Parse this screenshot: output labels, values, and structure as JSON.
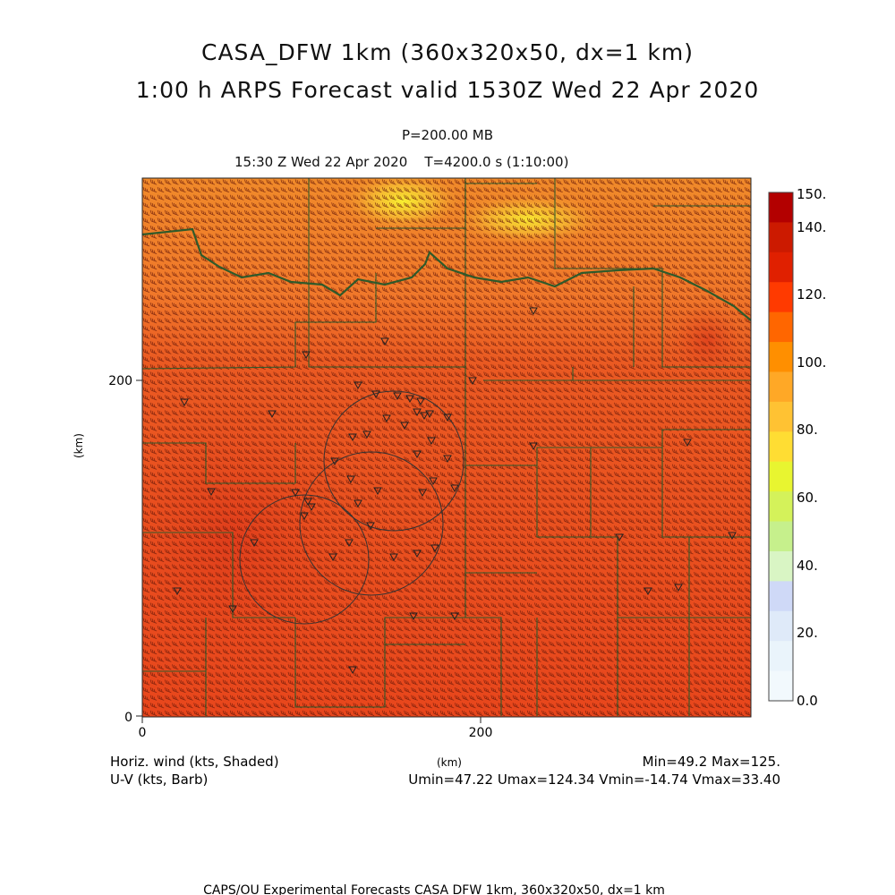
{
  "title_line1": "CASA_DFW 1km (360x320x50, dx=1 km)",
  "title_line2": "1:00 h ARPS Forecast valid 1530Z Wed 22 Apr 2020",
  "level": "P=200.00 MB",
  "valid_time": "15:30 Z Wed 22 Apr 2020",
  "sim_time": "T=4200.0 s (1:10:00)",
  "y_axis_label": "(km)",
  "x_axis_label": "(km)",
  "y_ticks": [
    "200",
    "0"
  ],
  "x_ticks": [
    "0",
    "200"
  ],
  "legend_left_line1": "Horiz. wind (kts, Shaded)",
  "legend_left_line2": "U-V (kts, Barb)",
  "min_max": "Min=49.2  Max=125.",
  "uv_stats": "Umin=47.22 Umax=124.34 Vmin=-14.74 Vmax=33.40",
  "footer": "CAPS/OU Experimental Forecasts  CASA DFW 1km, 360x320x50, dx=1 km",
  "colorbar": {
    "labels": [
      "150.",
      "140.",
      "120.",
      "100.",
      "80.",
      "60.",
      "40.",
      "20.",
      "0.0"
    ],
    "colors": [
      "#b30000",
      "#cc1a00",
      "#e02000",
      "#ff3a00",
      "#ff6600",
      "#ff8f00",
      "#ffa826",
      "#ffc233",
      "#ffdd33",
      "#e8f530",
      "#d4f25a",
      "#c6f08c",
      "#d9f5c4",
      "#cfd9f7",
      "#dfeaf9",
      "#eaf4fb",
      "#f2f9fd"
    ]
  },
  "colors": {
    "field_base": "#e84a1e",
    "field_north": "#f07a28",
    "field_peak": "#f5e62a",
    "boundary": "#2f5a2a",
    "radar_ring": "#333333"
  }
}
